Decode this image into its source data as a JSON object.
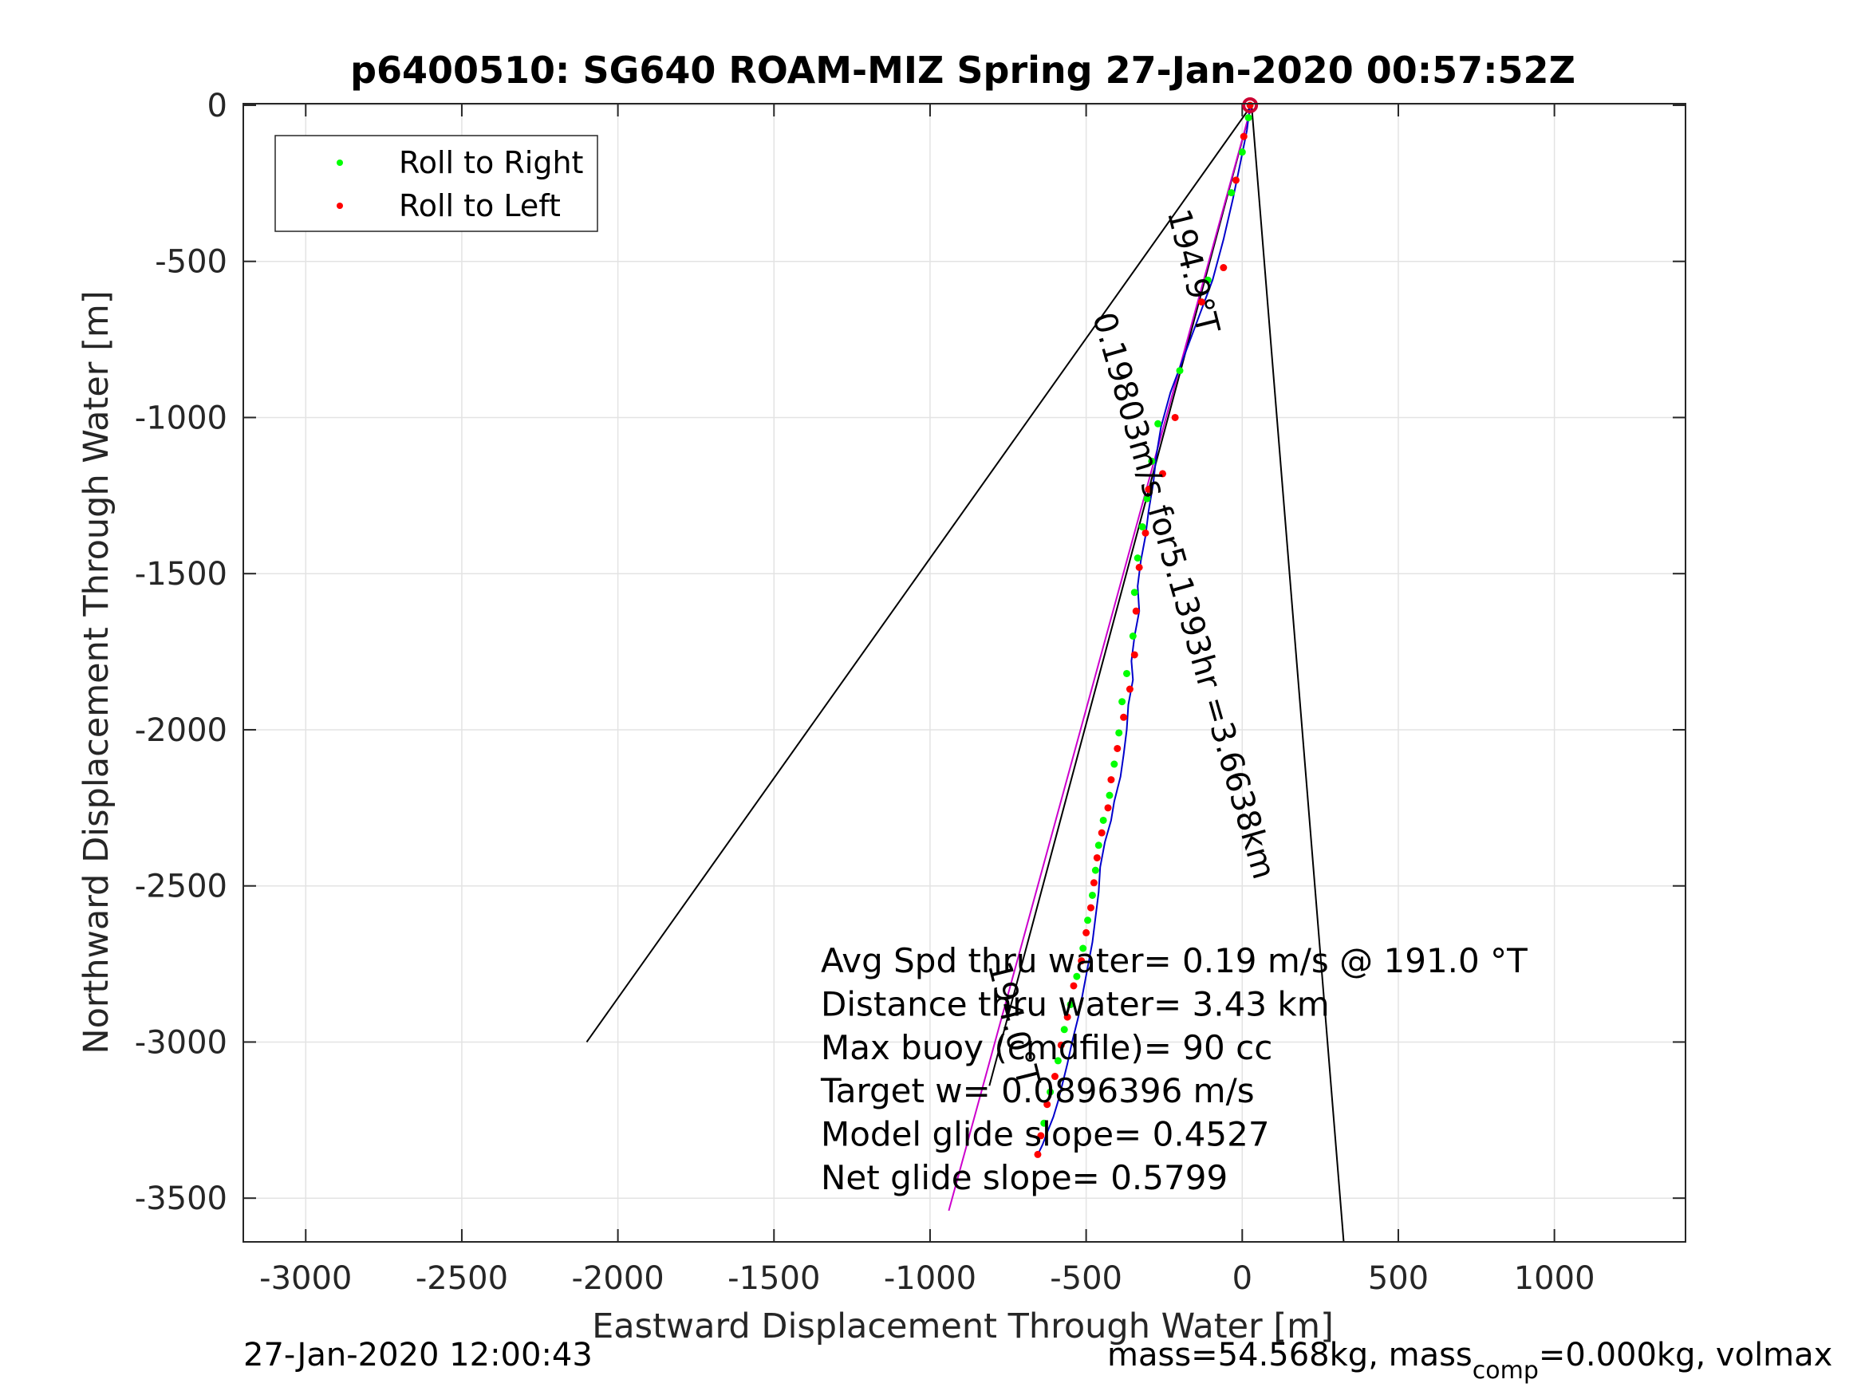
{
  "chart_data": {
    "type": "line",
    "title": "p6400510: SG640 ROAM-MIZ Spring 27-Jan-2020 00:57:52Z",
    "xlabel": "Eastward Displacement Through Water [m]",
    "ylabel": "Northward Displacement Through Water [m]",
    "xlim": [
      -3200,
      1420
    ],
    "ylim": [
      -3640,
      5
    ],
    "xticks": [
      -3000,
      -2500,
      -2000,
      -1500,
      -1000,
      -500,
      0,
      500,
      1000
    ],
    "yticks": [
      0,
      -500,
      -1000,
      -1500,
      -2000,
      -2500,
      -3000,
      -3500
    ],
    "grid": true,
    "legend": {
      "position": "top-left",
      "entries": [
        {
          "label": "Roll to Right",
          "color": "#00ff00"
        },
        {
          "label": "Roll to Left",
          "color": "#ff0000"
        }
      ]
    },
    "track": {
      "color": "#0000cc",
      "x": [
        25,
        15,
        -5,
        -30,
        -60,
        -95,
        -140,
        -185,
        -230,
        -260,
        -275,
        -285,
        -300,
        -310,
        -325,
        -335,
        -330,
        -345,
        -355,
        -350,
        -365,
        -370,
        -380,
        -390,
        -410,
        -420,
        -440,
        -455,
        -460,
        -470,
        -480,
        -495,
        -510,
        -525,
        -545,
        -560,
        -575,
        -590,
        -605,
        -625,
        -640,
        -655
      ],
      "y": [
        0,
        -80,
        -180,
        -300,
        -430,
        -560,
        -680,
        -800,
        -920,
        -1030,
        -1120,
        -1210,
        -1300,
        -1380,
        -1460,
        -1540,
        -1620,
        -1700,
        -1780,
        -1840,
        -1920,
        -2000,
        -2080,
        -2150,
        -2230,
        -2290,
        -2360,
        -2440,
        -2520,
        -2600,
        -2680,
        -2760,
        -2840,
        -2920,
        -3000,
        -3070,
        -3130,
        -3190,
        -3240,
        -3290,
        -3330,
        -3360
      ]
    },
    "roll_right": {
      "color": "#00ff00",
      "x": [
        20,
        0,
        -35,
        -110,
        -200,
        -270,
        -290,
        -305,
        -320,
        -335,
        -345,
        -350,
        -370,
        -385,
        -395,
        -410,
        -425,
        -445,
        -460,
        -470,
        -480,
        -495,
        -510,
        -530,
        -550,
        -570,
        -590,
        -615,
        -635
      ],
      "y": [
        -40,
        -150,
        -280,
        -560,
        -850,
        -1020,
        -1140,
        -1260,
        -1350,
        -1450,
        -1560,
        -1700,
        -1820,
        -1910,
        -2010,
        -2110,
        -2210,
        -2290,
        -2370,
        -2450,
        -2530,
        -2610,
        -2700,
        -2790,
        -2880,
        -2960,
        -3060,
        -3160,
        -3260
      ]
    },
    "roll_left": {
      "color": "#ff0000",
      "x": [
        25,
        5,
        -20,
        -60,
        -130,
        -215,
        -255,
        -300,
        -310,
        -330,
        -340,
        -345,
        -360,
        -380,
        -400,
        -420,
        -430,
        -450,
        -465,
        -475,
        -485,
        -500,
        -515,
        -540,
        -560,
        -580,
        -600,
        -625,
        -645,
        -655
      ],
      "y": [
        0,
        -100,
        -240,
        -520,
        -630,
        -1000,
        -1180,
        -1230,
        -1370,
        -1480,
        -1620,
        -1760,
        -1870,
        -1960,
        -2060,
        -2160,
        -2250,
        -2330,
        -2410,
        -2490,
        -2570,
        -2650,
        -2740,
        -2820,
        -2920,
        -3010,
        -3110,
        -3200,
        -3300,
        -3360
      ]
    },
    "magenta_line": {
      "color": "#cc00cc",
      "x": [
        30,
        -940
      ],
      "y": [
        0,
        -3540
      ]
    },
    "black_lines": [
      {
        "x": [
          30,
          -2100
        ],
        "y": [
          0,
          -3000
        ]
      },
      {
        "x": [
          30,
          325
        ],
        "y": [
          0,
          -3640
        ]
      },
      {
        "x": [
          30,
          -810
        ],
        "y": [
          0,
          -3140
        ]
      }
    ],
    "start_marker": {
      "x": 25,
      "y": 0,
      "color": "#cc0033"
    },
    "heading_labels": [
      {
        "text": "194.9°T",
        "x": -190,
        "y": -540,
        "angle": 76
      },
      {
        "text": "0.19803m/s for5.1393hr =3.6638km",
        "x": -220,
        "y": -1580,
        "angle": 74
      },
      {
        "text": "194.0°T",
        "x": -765,
        "y": -2950,
        "angle": 76
      }
    ],
    "annotations": [
      "Avg Spd thru water=  0.19 m/s @ 191.0 °T",
      "Distance thru water=  3.43 km",
      "Max buoy (cmdfile)= 90 cc",
      "Target w= 0.0896396 m/s",
      "Model glide slope= 0.4527",
      "Net glide slope= 0.5799"
    ],
    "footer_left": "27-Jan-2020 12:00:43",
    "footer_right_prefix": "mass=54.568kg, mass",
    "footer_right_sub": "comp",
    "footer_right_suffix": "=0.000kg, volmax"
  }
}
